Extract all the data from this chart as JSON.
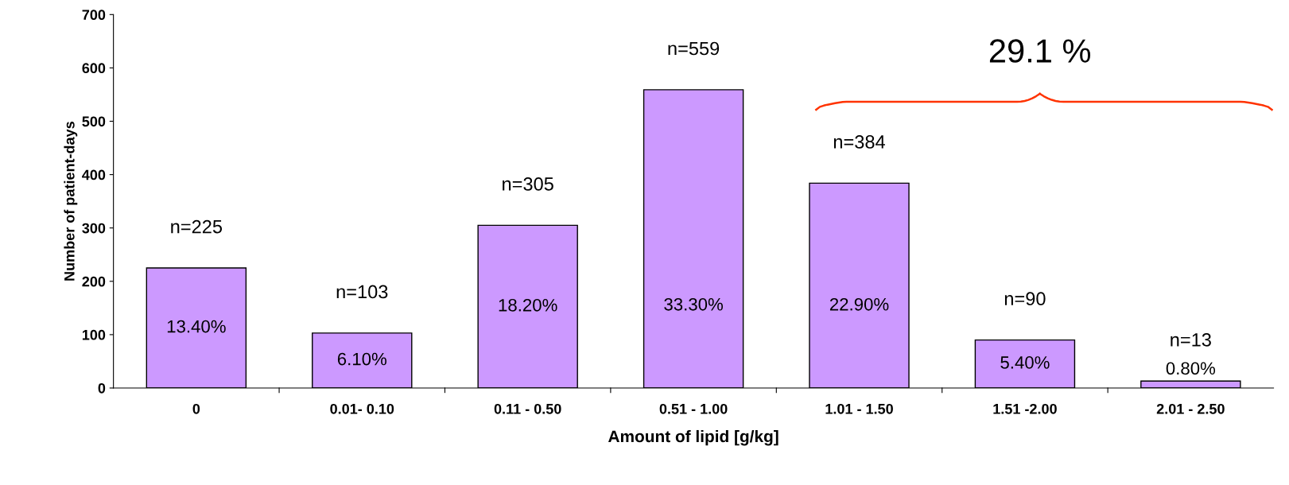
{
  "chart_data": {
    "type": "bar",
    "xlabel": "Amount of lipid [g/kg]",
    "ylabel": "Number of patient-days",
    "categories": [
      "0",
      "0.01- 0.10",
      "0.11 - 0.50",
      "0.51 - 1.00",
      "1.01 - 1.50",
      "1.51 -2.00",
      "2.01 - 2.50"
    ],
    "values": [
      225,
      103,
      305,
      559,
      384,
      90,
      13
    ],
    "value_labels": [
      "n=225",
      "n=103",
      "n=305",
      "n=559",
      "n=384",
      "n=90",
      "n=13"
    ],
    "color": "#cc99ff",
    "ylim": [
      0,
      700
    ],
    "yticks": [
      0,
      100,
      200,
      300,
      400,
      500,
      600,
      700
    ],
    "grid": false,
    "annotations": [
      "13.40%",
      "6.10%",
      "18.20%",
      "33.30%",
      "22.90%",
      "5.40%",
      "0.80%",
      "29.1 %"
    ]
  }
}
